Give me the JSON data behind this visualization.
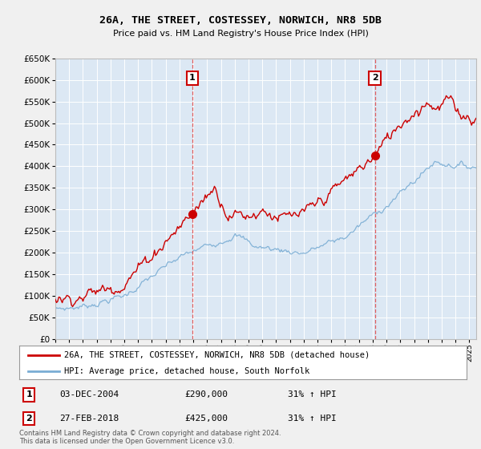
{
  "title": "26A, THE STREET, COSTESSEY, NORWICH, NR8 5DB",
  "subtitle": "Price paid vs. HM Land Registry's House Price Index (HPI)",
  "ylim": [
    0,
    650000
  ],
  "yticks": [
    0,
    50000,
    100000,
    150000,
    200000,
    250000,
    300000,
    350000,
    400000,
    450000,
    500000,
    550000,
    600000,
    650000
  ],
  "xlim_start": 1995.0,
  "xlim_end": 2025.5,
  "property_color": "#cc0000",
  "hpi_color": "#7aadd4",
  "vline_color": "#dd4444",
  "legend_property": "26A, THE STREET, COSTESSEY, NORWICH, NR8 5DB (detached house)",
  "legend_hpi": "HPI: Average price, detached house, South Norfolk",
  "sale1_x": 2004.92,
  "sale1_y": 290000,
  "sale1_label": "1",
  "sale1_date": "03-DEC-2004",
  "sale1_price": "£290,000",
  "sale1_hpi": "31% ↑ HPI",
  "sale2_x": 2018.16,
  "sale2_y": 425000,
  "sale2_label": "2",
  "sale2_date": "27-FEB-2018",
  "sale2_price": "£425,000",
  "sale2_hpi": "31% ↑ HPI",
  "footnote": "Contains HM Land Registry data © Crown copyright and database right 2024.\nThis data is licensed under the Open Government Licence v3.0.",
  "fig_bg_color": "#f0f0f0",
  "plot_bg_color": "#dce8f4",
  "grid_color": "#ffffff"
}
